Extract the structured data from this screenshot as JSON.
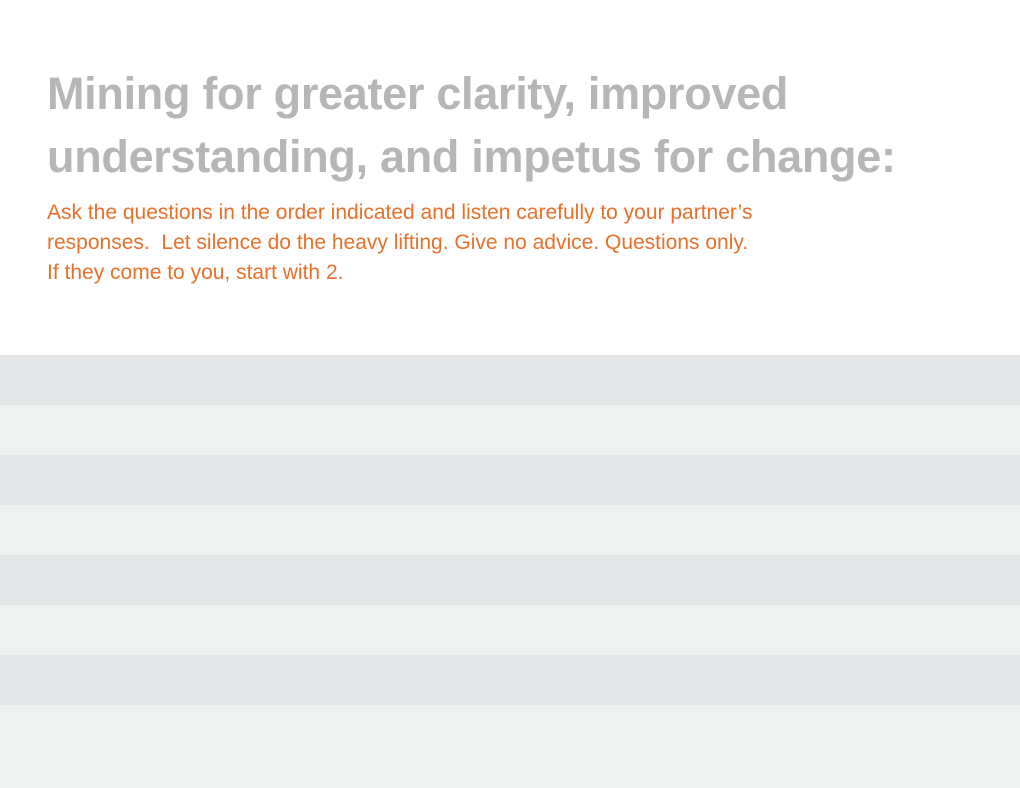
{
  "title": {
    "lines": [
      "Mining for greater clarity, improved",
      "understanding, and impetus for change:"
    ]
  },
  "instructions": {
    "lines": [
      "Ask the questions in the order indicated and listen carefully to your partner’s",
      "responses.  Let silence do the heavy lifting. Give no advice. Questions only.",
      "If they come to you, start with 2."
    ]
  }
}
